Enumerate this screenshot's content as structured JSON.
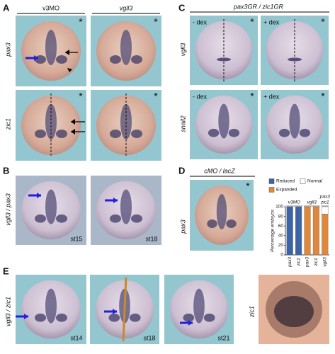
{
  "figure": {
    "panel_labels": [
      "A",
      "B",
      "C",
      "D",
      "E"
    ],
    "a": {
      "headers": [
        "v3MO",
        "vgll3"
      ],
      "rows": [
        "pax3",
        "zic1"
      ],
      "stars": [
        "*",
        "*",
        "*",
        "*"
      ]
    },
    "b": {
      "row": "vgll3 / pax3",
      "stages": [
        "st15",
        "st18"
      ]
    },
    "c": {
      "header": "pax3GR / zic1GR",
      "rows": [
        "vgll3",
        "snail2"
      ],
      "conditions": [
        "- dex",
        "+ dex",
        "- dex",
        "+ dex"
      ],
      "stars": [
        "*",
        "*",
        "*",
        "*"
      ]
    },
    "d": {
      "header": "cMO / lacZ",
      "row": "pax3",
      "star": "*"
    },
    "e": {
      "row": "vgll3 / zic1",
      "stages": [
        "st14",
        "st18",
        "st21"
      ],
      "side_row": "zic1"
    }
  },
  "chart_data": {
    "type": "bar",
    "stacked": true,
    "ylabel": "Percentage embryos",
    "categories": [
      "pax3",
      "zic1",
      "pax3",
      "zic1",
      "vgll3"
    ],
    "groups": [
      [
        "v3MO"
      ],
      [
        "vgll3"
      ],
      [
        "pax3",
        "zic1"
      ]
    ],
    "ylim": [
      0,
      100
    ],
    "yticks": [
      0,
      20,
      40,
      60,
      80,
      100
    ],
    "series": [
      {
        "name": "Reduced",
        "color": "#3b63a8",
        "values": [
          100,
          100,
          0,
          0,
          0
        ]
      },
      {
        "name": "Expanded",
        "color": "#e0883a",
        "values": [
          0,
          0,
          100,
          100,
          85
        ]
      },
      {
        "name": "Normal",
        "color": "#ffffff",
        "values": [
          0,
          0,
          0,
          0,
          15
        ]
      }
    ]
  }
}
